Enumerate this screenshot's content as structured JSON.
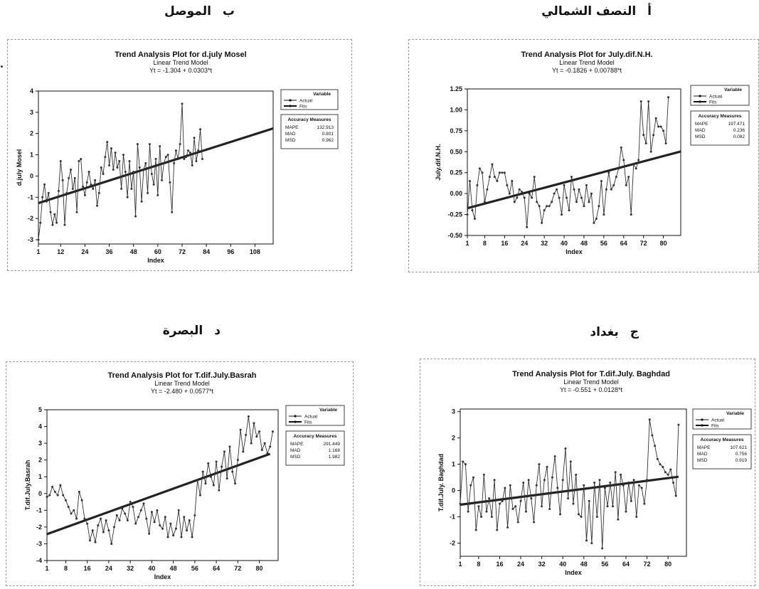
{
  "colors": {
    "ink": "#111111",
    "frame": "#9a9a9a",
    "fit_line": "#222222",
    "actual_line": "#333333"
  },
  "panels": [
    {
      "caption": {
        "letter": "ب",
        "text": "الموصل"
      },
      "chart_data": {
        "type": "line",
        "title": "Trend Analysis Plot for d.july Mosel",
        "subtitle": "Linear Trend Model",
        "equation": "Yt = -1.304 + 0.0303*t",
        "xlabel": "Index",
        "ylabel": "d.july Mosel",
        "xlim": [
          1,
          117
        ],
        "ylim": [
          -3.2,
          4
        ],
        "x_ticks": [
          1,
          12,
          24,
          36,
          48,
          60,
          72,
          84,
          96,
          108
        ],
        "y_ticks": [
          -3,
          -2,
          -1,
          0,
          1,
          2,
          3,
          4
        ],
        "fit_range": [
          1,
          117
        ],
        "fit": {
          "intercept": -1.304,
          "slope": 0.0303
        },
        "series": [
          {
            "name": "Actual",
            "values": [
              -3.0,
              -2.2,
              -1.0,
              -0.4,
              -1.2,
              -0.8,
              -1.7,
              -2.3,
              -1.8,
              -2.2,
              -0.7,
              0.7,
              -0.2,
              -2.3,
              -0.8,
              -0.1,
              0.3,
              -0.6,
              -0.1,
              -1.7,
              0.7,
              0.8,
              -0.5,
              -0.9,
              -0.3,
              0.2,
              -0.4,
              -0.6,
              -0.2,
              -1.4,
              -0.8,
              0.4,
              0.1,
              0.9,
              1.6,
              0.5,
              1.3,
              0.3,
              1.1,
              0.4,
              0.7,
              -0.6,
              1.0,
              0.2,
              -1.0,
              0.7,
              -0.6,
              0.2,
              -1.9,
              1.5,
              0.4,
              -1.2,
              0.3,
              0.6,
              -0.8,
              1.5,
              0.1,
              -0.4,
              0.8,
              -0.9,
              1.4,
              -0.2,
              0.6,
              0.9,
              1.0,
              -0.3,
              -1.7,
              0.6,
              1.2,
              0.8,
              1.5,
              3.4,
              0.8,
              0.9,
              1.2,
              1.1,
              0.5,
              1.8,
              0.7,
              1.2,
              2.2,
              0.8
            ]
          }
        ],
        "legend": {
          "title": "Variable",
          "items": [
            "Actual",
            "Fits"
          ],
          "position": "right"
        },
        "accuracy": {
          "title": "Accuracy Measures",
          "rows": [
            [
              "MAPE",
              "132.913"
            ],
            [
              "MAD",
              "0.801"
            ],
            [
              "MSD",
              "0.962"
            ]
          ]
        }
      }
    },
    {
      "caption": {
        "letter": "أ",
        "text": "النصف الشمالي"
      },
      "chart_data": {
        "type": "line",
        "title": "Trend Analysis Plot for July.dif.N.H.",
        "subtitle": "Linear Trend Model",
        "equation": "Yt = -0.1826 + 0.00788*t",
        "xlabel": "Index",
        "ylabel": "July.dif.N.H.",
        "xlim": [
          1,
          87
        ],
        "ylim": [
          -0.5,
          1.25
        ],
        "x_ticks": [
          1,
          8,
          16,
          24,
          32,
          40,
          48,
          56,
          64,
          72,
          80
        ],
        "y_ticks": [
          -0.5,
          -0.25,
          0.0,
          0.25,
          0.5,
          0.75,
          1.0,
          1.25
        ],
        "y_tick_labels": [
          "-0.50",
          "-0.25",
          "0.00",
          "0.25",
          "0.50",
          "0.75",
          "1.00",
          "1.25"
        ],
        "fit_range": [
          1,
          87
        ],
        "fit": {
          "intercept": -0.1826,
          "slope": 0.00788
        },
        "series": [
          {
            "name": "Actual",
            "values": [
              -0.25,
              0.15,
              -0.2,
              -0.3,
              0.1,
              0.3,
              0.25,
              -0.1,
              0.05,
              0.2,
              0.35,
              0.2,
              0.15,
              0.25,
              0.25,
              0.25,
              0.1,
              0.0,
              0.15,
              -0.1,
              -0.05,
              0.05,
              0.02,
              -0.05,
              -0.4,
              0.0,
              -0.05,
              0.2,
              -0.1,
              -0.15,
              -0.35,
              -0.2,
              -0.15,
              -0.15,
              -0.1,
              0.0,
              0.05,
              -0.05,
              -0.25,
              0.1,
              -0.05,
              -0.2,
              0.2,
              0.05,
              -0.1,
              0.05,
              -0.05,
              -0.15,
              0.1,
              -0.1,
              0.0,
              -0.35,
              -0.3,
              -0.15,
              0.15,
              -0.25,
              0.05,
              0.25,
              0.05,
              0.1,
              0.2,
              0.3,
              0.55,
              0.4,
              0.1,
              0.2,
              -0.25,
              0.35,
              0.3,
              0.4,
              1.1,
              0.7,
              0.6,
              1.1,
              0.5,
              0.7,
              0.9,
              0.8,
              0.8,
              0.75,
              0.6,
              1.15
            ]
          }
        ],
        "legend": {
          "title": "Variable",
          "items": [
            "Actual",
            "Fits"
          ],
          "position": "right"
        },
        "accuracy": {
          "title": "Accuracy Measures",
          "rows": [
            [
              "MAPE",
              "197.471"
            ],
            [
              "MAD",
              "0.236"
            ],
            [
              "MSD",
              "0.082"
            ]
          ]
        }
      }
    },
    {
      "caption": {
        "letter": "د",
        "text": "البصرة"
      },
      "chart_data": {
        "type": "line",
        "title": "Trend Analysis Plot for T.dif.July.Basrah",
        "subtitle": "Linear Trend Model",
        "equation": "Yt = -2.480 + 0.0577*t",
        "xlabel": "Index",
        "ylabel": "T.dif.July.Basrah",
        "xlim": [
          1,
          87
        ],
        "ylim": [
          -4,
          5
        ],
        "x_ticks": [
          1,
          8,
          16,
          24,
          32,
          40,
          48,
          56,
          64,
          72,
          80
        ],
        "y_ticks": [
          -4,
          -3,
          -2,
          -1,
          0,
          1,
          2,
          3,
          4,
          5
        ],
        "fit_range": [
          1,
          84
        ],
        "fit": {
          "intercept": -2.48,
          "slope": 0.0577
        },
        "series": [
          {
            "name": "Actual",
            "values": [
              -0.2,
              -0.1,
              0.4,
              0.1,
              -0.1,
              0.5,
              -0.1,
              -0.4,
              -0.8,
              -1.2,
              -1.0,
              -1.5,
              0.1,
              -0.4,
              -1.5,
              -1.8,
              -2.8,
              -2.2,
              -2.9,
              -1.9,
              -1.5,
              -2.3,
              -1.6,
              -2.2,
              -3.0,
              -2.0,
              -1.3,
              -1.6,
              -0.9,
              -1.2,
              -1.6,
              -0.5,
              -0.8,
              -1.8,
              -1.4,
              -1.0,
              -0.6,
              -1.5,
              -2.4,
              -1.1,
              -1.7,
              -1.0,
              -1.9,
              -2.1,
              -1.4,
              -2.6,
              -1.8,
              -2.5,
              -2.1,
              -1.0,
              -2.6,
              -1.4,
              -2.2,
              -1.6,
              -2.6,
              -1.3,
              0.8,
              -0.1,
              1.3,
              0.6,
              1.8,
              1.0,
              0.5,
              1.9,
              0.2,
              1.6,
              2.5,
              0.9,
              2.8,
              1.3,
              0.6,
              2.0,
              3.8,
              2.5,
              3.5,
              4.6,
              3.0,
              4.2,
              3.4,
              3.7,
              2.6,
              3.0,
              2.4,
              2.8,
              3.7
            ]
          }
        ],
        "legend": {
          "title": "Variable",
          "items": [
            "Actual",
            "Fits"
          ],
          "position": "right"
        },
        "accuracy": {
          "title": "Accuracy Measures",
          "rows": [
            [
              "MAPE",
              "291.449"
            ],
            [
              "MAD",
              "1.168"
            ],
            [
              "MSD",
              "1.982"
            ]
          ]
        }
      }
    },
    {
      "caption": {
        "letter": "ج",
        "text": "بغداد"
      },
      "chart_data": {
        "type": "line",
        "title": "Trend Analysis Plot for T.dif.July. Baghdad",
        "subtitle": "Linear Trend Model",
        "equation": "Yt = -0.551 + 0.0128*t",
        "xlabel": "Index",
        "ylabel": "T.dif.July. Baghdad",
        "xlim": [
          1,
          87
        ],
        "ylim": [
          -2.5,
          3.1
        ],
        "x_ticks": [
          1,
          8,
          16,
          24,
          32,
          40,
          48,
          56,
          64,
          72,
          80
        ],
        "y_ticks": [
          -2,
          -1,
          0,
          1,
          2,
          3
        ],
        "fit_range": [
          1,
          84
        ],
        "fit": {
          "intercept": -0.551,
          "slope": 0.0128
        },
        "series": [
          {
            "name": "Actual",
            "values": [
              -0.5,
              1.1,
              1.0,
              -0.8,
              0.2,
              0.5,
              -1.5,
              -0.6,
              -1.0,
              0.6,
              -0.8,
              -0.3,
              -1.0,
              0.4,
              -1.5,
              -0.5,
              -0.4,
              0.1,
              -1.4,
              0.2,
              -0.7,
              -0.6,
              -1.2,
              -0.4,
              0.3,
              -0.8,
              0.4,
              -0.3,
              -1.2,
              0.2,
              1.0,
              -0.6,
              0.4,
              0.9,
              -0.7,
              0.5,
              1.3,
              0.1,
              -0.9,
              0.4,
              1.6,
              -0.3,
              1.1,
              -0.5,
              0.6,
              -0.9,
              -1.0,
              0.2,
              -1.9,
              -0.4,
              -2.0,
              0.3,
              -1.0,
              0.4,
              -2.2,
              0.1,
              -0.6,
              0.3,
              -0.6,
              0.7,
              -1.1,
              0.6,
              0.2,
              -0.8,
              0.3,
              -0.4,
              0.4,
              -1.0,
              0.2,
              0.1,
              -0.5,
              0.4,
              2.7,
              2.1,
              1.7,
              1.2,
              1.0,
              0.9,
              0.7,
              0.6,
              0.8,
              0.3,
              -0.2,
              2.5
            ]
          }
        ],
        "legend": {
          "title": "Variable",
          "items": [
            "Actual",
            "Fits"
          ],
          "position": "right"
        },
        "accuracy": {
          "title": "Accuracy Measures",
          "rows": [
            [
              "MAPE",
              "107.621"
            ],
            [
              "MAD",
              "0.756"
            ],
            [
              "MSD",
              "0.919"
            ]
          ]
        }
      }
    }
  ]
}
